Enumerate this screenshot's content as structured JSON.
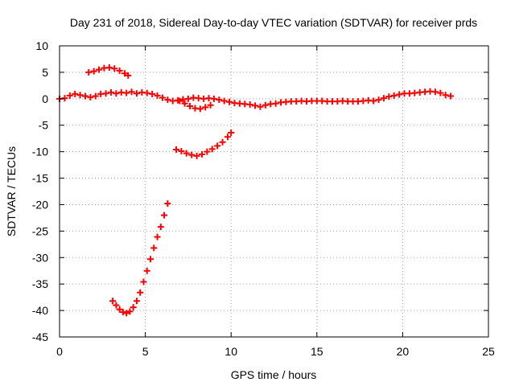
{
  "chart_data": {
    "type": "scatter",
    "title": "Day 231 of 2018, Sidereal Day-to-day VTEC variation (SDTVAR) for receiver prds",
    "xlabel": "GPS time / hours",
    "ylabel": "SDTVAR / TECUs",
    "xlim": [
      0,
      25
    ],
    "ylim": [
      -45,
      10
    ],
    "xticks": [
      0,
      5,
      10,
      15,
      20,
      25
    ],
    "yticks": [
      -45,
      -40,
      -35,
      -30,
      -25,
      -20,
      -15,
      -10,
      -5,
      0,
      5,
      10
    ],
    "grid": true,
    "marker": "plus",
    "color": "#ff0000",
    "series": [
      {
        "name": "main-band",
        "points": [
          [
            0.0,
            0.0
          ],
          [
            0.3,
            0.1
          ],
          [
            0.6,
            0.6
          ],
          [
            0.9,
            0.9
          ],
          [
            1.2,
            0.7
          ],
          [
            1.5,
            0.5
          ],
          [
            1.8,
            0.3
          ],
          [
            2.1,
            0.5
          ],
          [
            2.4,
            0.9
          ],
          [
            2.7,
            1.0
          ],
          [
            3.0,
            1.2
          ],
          [
            3.3,
            1.0
          ],
          [
            3.6,
            1.2
          ],
          [
            3.9,
            1.1
          ],
          [
            4.2,
            1.3
          ],
          [
            4.5,
            1.0
          ],
          [
            4.8,
            1.2
          ],
          [
            5.1,
            1.1
          ],
          [
            5.4,
            0.9
          ],
          [
            5.7,
            0.6
          ],
          [
            6.0,
            0.2
          ],
          [
            6.3,
            -0.2
          ],
          [
            6.6,
            -0.4
          ],
          [
            6.9,
            -0.3
          ],
          [
            7.2,
            -0.1
          ],
          [
            7.5,
            0.0
          ],
          [
            7.8,
            0.2
          ],
          [
            8.1,
            0.1
          ],
          [
            8.4,
            0.0
          ],
          [
            8.7,
            0.1
          ],
          [
            9.0,
            0.0
          ],
          [
            9.3,
            -0.2
          ],
          [
            9.6,
            -0.4
          ],
          [
            9.9,
            -0.6
          ],
          [
            10.2,
            -0.8
          ],
          [
            10.5,
            -0.9
          ],
          [
            10.8,
            -1.0
          ],
          [
            11.1,
            -1.1
          ],
          [
            11.4,
            -1.3
          ],
          [
            11.7,
            -1.5
          ],
          [
            12.0,
            -1.2
          ],
          [
            12.3,
            -1.0
          ],
          [
            12.6,
            -0.9
          ],
          [
            12.9,
            -0.7
          ],
          [
            13.2,
            -0.6
          ],
          [
            13.5,
            -0.5
          ],
          [
            13.8,
            -0.5
          ],
          [
            14.1,
            -0.4
          ],
          [
            14.4,
            -0.5
          ],
          [
            14.7,
            -0.4
          ],
          [
            15.0,
            -0.4
          ],
          [
            15.3,
            -0.4
          ],
          [
            15.6,
            -0.5
          ],
          [
            15.9,
            -0.5
          ],
          [
            16.2,
            -0.5
          ],
          [
            16.5,
            -0.4
          ],
          [
            16.8,
            -0.5
          ],
          [
            17.1,
            -0.5
          ],
          [
            17.4,
            -0.5
          ],
          [
            17.7,
            -0.4
          ],
          [
            18.0,
            -0.3
          ],
          [
            18.3,
            -0.4
          ],
          [
            18.6,
            -0.2
          ],
          [
            18.9,
            0.1
          ],
          [
            19.2,
            0.4
          ],
          [
            19.5,
            0.6
          ],
          [
            19.8,
            0.8
          ],
          [
            20.1,
            1.0
          ],
          [
            20.4,
            1.0
          ],
          [
            20.7,
            1.1
          ],
          [
            21.0,
            1.2
          ],
          [
            21.3,
            1.3
          ],
          [
            21.6,
            1.4
          ],
          [
            21.9,
            1.3
          ],
          [
            22.2,
            1.1
          ],
          [
            22.5,
            0.7
          ],
          [
            22.8,
            0.5
          ]
        ]
      },
      {
        "name": "dip-8h",
        "points": [
          [
            7.0,
            -0.4
          ],
          [
            7.3,
            -0.9
          ],
          [
            7.6,
            -1.4
          ],
          [
            7.9,
            -1.8
          ],
          [
            8.2,
            -1.9
          ],
          [
            8.5,
            -1.6
          ],
          [
            8.8,
            -1.2
          ]
        ]
      },
      {
        "name": "arc-upper",
        "points": [
          [
            1.7,
            5.0
          ],
          [
            2.0,
            5.2
          ],
          [
            2.3,
            5.5
          ],
          [
            2.6,
            5.8
          ],
          [
            2.9,
            5.9
          ],
          [
            3.2,
            5.7
          ],
          [
            3.5,
            5.3
          ],
          [
            3.8,
            4.8
          ],
          [
            4.0,
            4.4
          ]
        ]
      },
      {
        "name": "arc-mid",
        "points": [
          [
            6.8,
            -9.6
          ],
          [
            7.1,
            -9.9
          ],
          [
            7.4,
            -10.3
          ],
          [
            7.7,
            -10.6
          ],
          [
            8.0,
            -10.8
          ],
          [
            8.3,
            -10.5
          ],
          [
            8.6,
            -10.0
          ],
          [
            8.9,
            -9.5
          ],
          [
            9.2,
            -8.9
          ],
          [
            9.5,
            -8.2
          ],
          [
            9.8,
            -7.2
          ],
          [
            10.0,
            -6.4
          ]
        ]
      },
      {
        "name": "arc-lower",
        "points": [
          [
            3.1,
            -38.2
          ],
          [
            3.3,
            -39.0
          ],
          [
            3.5,
            -39.8
          ],
          [
            3.7,
            -40.3
          ],
          [
            3.9,
            -40.5
          ],
          [
            4.1,
            -40.2
          ],
          [
            4.3,
            -39.4
          ],
          [
            4.5,
            -38.2
          ],
          [
            4.7,
            -36.6
          ],
          [
            4.9,
            -34.6
          ],
          [
            5.1,
            -32.5
          ],
          [
            5.3,
            -30.3
          ],
          [
            5.5,
            -28.2
          ],
          [
            5.7,
            -26.1
          ],
          [
            5.9,
            -24.2
          ],
          [
            6.1,
            -22.0
          ],
          [
            6.3,
            -19.8
          ]
        ]
      }
    ]
  }
}
